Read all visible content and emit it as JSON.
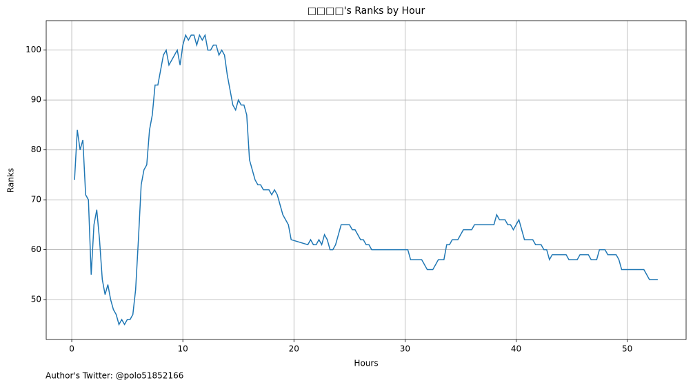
{
  "chart_data": {
    "type": "line",
    "title": "□□□□'s Ranks by Hour",
    "x_label": "Hours",
    "y_label": "Ranks",
    "footer": "Author's Twitter: @polo51852166",
    "x": [
      0.25,
      0.5,
      0.75,
      1.0,
      1.25,
      1.5,
      1.75,
      2.0,
      2.25,
      2.5,
      2.75,
      3.0,
      3.25,
      3.5,
      3.75,
      4.0,
      4.25,
      4.5,
      4.75,
      5.0,
      5.25,
      5.5,
      5.75,
      6.0,
      6.25,
      6.5,
      6.75,
      7.0,
      7.25,
      7.5,
      7.75,
      8.0,
      8.25,
      8.5,
      8.75,
      9.0,
      9.25,
      9.5,
      9.75,
      10.0,
      10.25,
      10.5,
      10.75,
      11.0,
      11.25,
      11.5,
      11.75,
      12.0,
      12.25,
      12.5,
      12.75,
      13.0,
      13.25,
      13.5,
      13.75,
      14.0,
      14.25,
      14.5,
      14.75,
      15.0,
      15.25,
      15.5,
      15.75,
      16.0,
      16.25,
      16.5,
      16.75,
      17.0,
      17.25,
      17.5,
      17.75,
      18.0,
      18.25,
      18.5,
      18.75,
      19.0,
      19.25,
      19.5,
      19.75,
      21.25,
      21.5,
      21.75,
      22.0,
      22.25,
      22.5,
      22.75,
      23.0,
      23.25,
      23.5,
      23.75,
      24.0,
      24.25,
      25.0,
      25.25,
      25.5,
      25.75,
      26.0,
      26.25,
      26.5,
      26.75,
      27.0,
      30.25,
      30.5,
      31.5,
      32.0,
      32.5,
      33.0,
      33.5,
      33.75,
      34.0,
      34.25,
      34.75,
      35.25,
      36.0,
      36.25,
      38.0,
      38.25,
      38.5,
      39.0,
      39.25,
      39.5,
      39.75,
      40.0,
      40.25,
      40.75,
      41.5,
      41.75,
      42.25,
      42.5,
      42.75,
      43.0,
      43.25,
      44.5,
      44.75,
      45.5,
      45.75,
      46.5,
      46.75,
      47.25,
      47.5,
      48.0,
      48.25,
      49.0,
      49.25,
      49.5,
      51.5,
      52.0,
      52.75
    ],
    "values": [
      74,
      84,
      80,
      82,
      71,
      70,
      55,
      65,
      68,
      62,
      54,
      51,
      53,
      50,
      48,
      47,
      45,
      46,
      45,
      46,
      46,
      47,
      52,
      62,
      73,
      76,
      77,
      84,
      87,
      93,
      93,
      96,
      99,
      100,
      97,
      98,
      99,
      100,
      97,
      101,
      103,
      102,
      103,
      103,
      101,
      103,
      102,
      103,
      100,
      100,
      101,
      101,
      99,
      100,
      99,
      95,
      92,
      89,
      88,
      90,
      89,
      89,
      87,
      78,
      76,
      74,
      73,
      73,
      72,
      72,
      72,
      71,
      72,
      71,
      69,
      67,
      66,
      65,
      62,
      61,
      62,
      61,
      61,
      62,
      61,
      63,
      62,
      60,
      60,
      61,
      63,
      65,
      65,
      64,
      64,
      63,
      62,
      62,
      61,
      61,
      60,
      60,
      58,
      58,
      56,
      56,
      58,
      58,
      61,
      61,
      62,
      62,
      64,
      64,
      65,
      65,
      67,
      66,
      66,
      65,
      65,
      64,
      65,
      66,
      62,
      62,
      61,
      61,
      60,
      60,
      58,
      59,
      59,
      58,
      58,
      59,
      59,
      58,
      58,
      60,
      60,
      59,
      59,
      58,
      56,
      56,
      54,
      54
    ],
    "color": "#1f77b4",
    "xlim": [
      -2.3,
      55.3
    ],
    "ylim": [
      42.0,
      105.9
    ],
    "xticks": [
      0,
      10,
      20,
      30,
      40,
      50
    ],
    "yticks": [
      50,
      60,
      70,
      80,
      90,
      100
    ],
    "grid": true
  }
}
